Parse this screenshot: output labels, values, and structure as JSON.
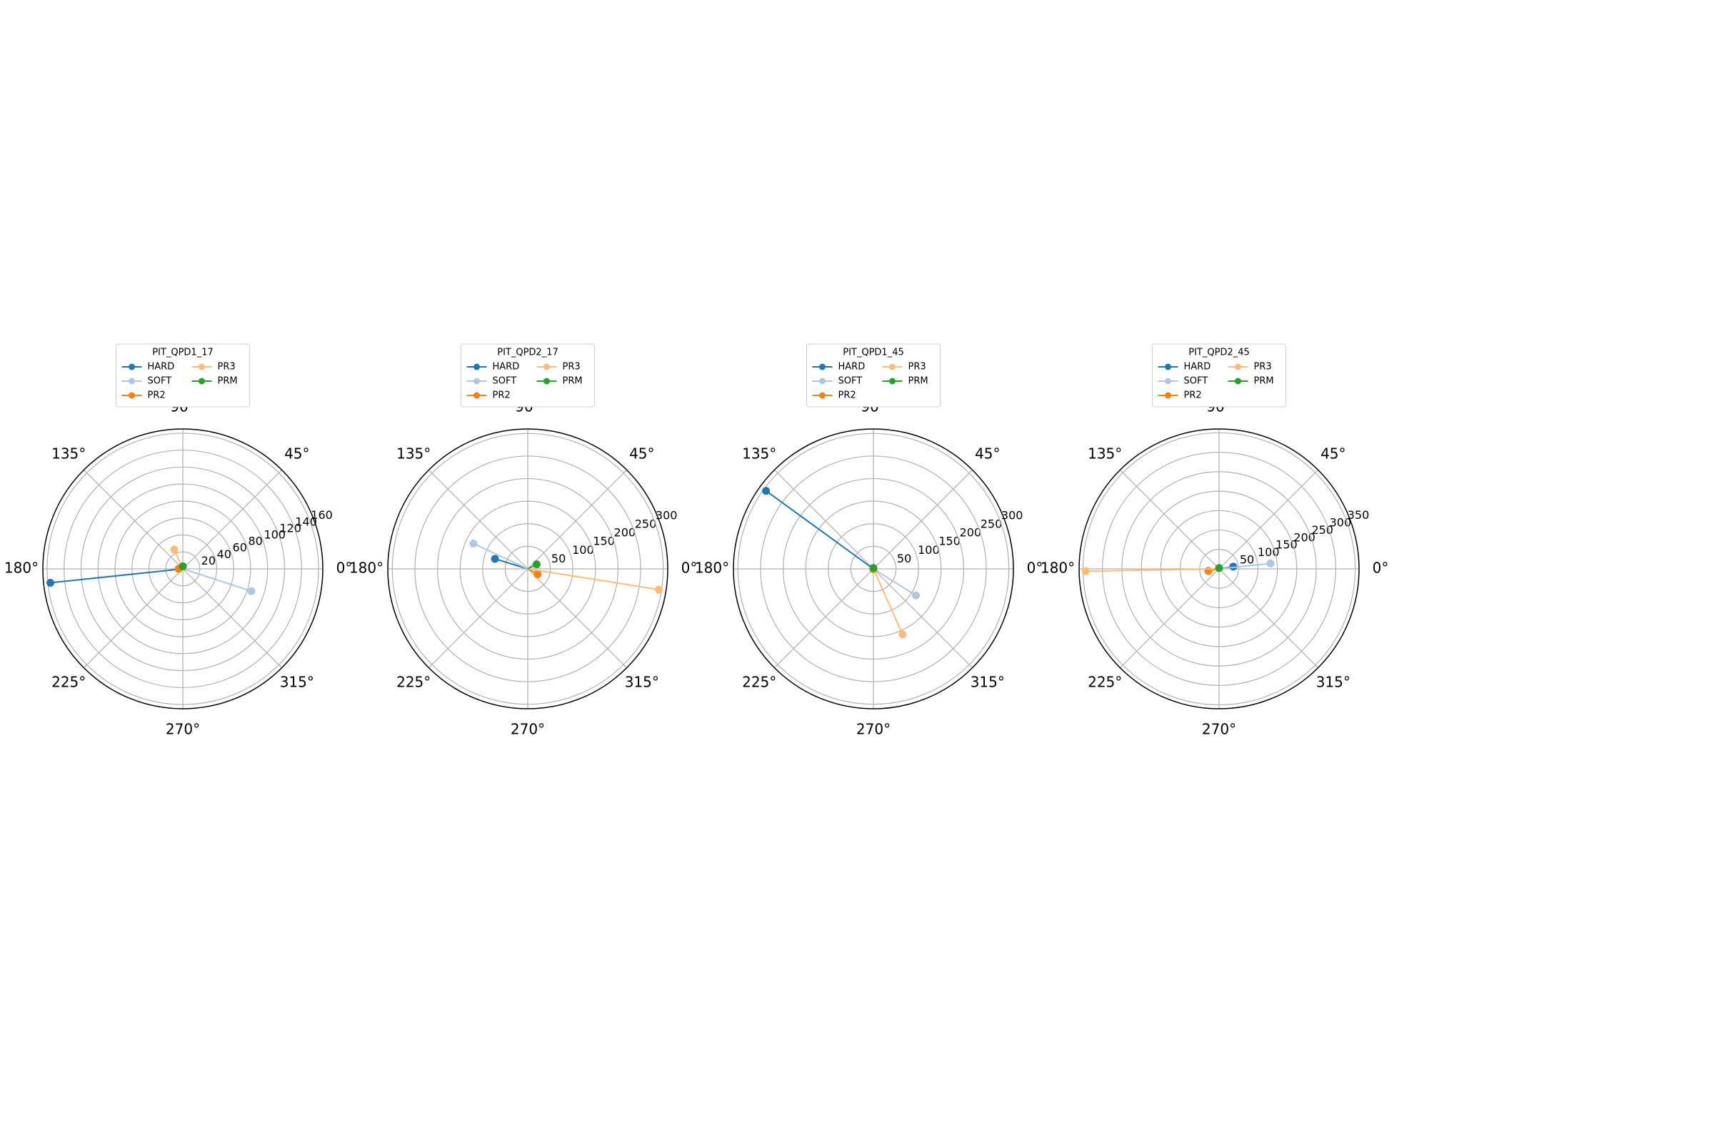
{
  "chart_data": [
    {
      "type": "polar",
      "legend_title": "PIT_QPD1_17",
      "thetaticks": [
        {
          "value": 0,
          "label": "0°"
        },
        {
          "value": 45,
          "label": "45°"
        },
        {
          "value": 90,
          "label": "90°"
        },
        {
          "value": 135,
          "label": "135°"
        },
        {
          "value": 180,
          "label": "180°"
        },
        {
          "value": 225,
          "label": "225°"
        },
        {
          "value": 270,
          "label": "270°"
        },
        {
          "value": 315,
          "label": "315°"
        }
      ],
      "rlim": [
        0,
        165
      ],
      "rticks": [
        20,
        40,
        60,
        80,
        100,
        120,
        140,
        160
      ],
      "series": [
        {
          "name": "HARD",
          "color": "#1f77b4",
          "theta": 186,
          "r": 157
        },
        {
          "name": "SOFT",
          "color": "#aec7e8",
          "theta": 342,
          "r": 85
        },
        {
          "name": "PR2",
          "color": "#ff7f0e",
          "theta": 180,
          "r": 5
        },
        {
          "name": "PR3",
          "color": "#ffbb78",
          "theta": 114,
          "r": 25
        },
        {
          "name": "PRM",
          "color": "#2ca02c",
          "theta": 90,
          "r": 3
        }
      ]
    },
    {
      "type": "polar",
      "legend_title": "PIT_QPD2_17",
      "thetaticks": [
        {
          "value": 0,
          "label": "0°"
        },
        {
          "value": 45,
          "label": "45°"
        },
        {
          "value": 90,
          "label": "90°"
        },
        {
          "value": 135,
          "label": "135°"
        },
        {
          "value": 180,
          "label": "180°"
        },
        {
          "value": 225,
          "label": "225°"
        },
        {
          "value": 270,
          "label": "270°"
        },
        {
          "value": 315,
          "label": "315°"
        }
      ],
      "rlim": [
        0,
        310
      ],
      "rticks": [
        50,
        100,
        150,
        200,
        250,
        300
      ],
      "series": [
        {
          "name": "HARD",
          "color": "#1f77b4",
          "theta": 163,
          "r": 76
        },
        {
          "name": "SOFT",
          "color": "#aec7e8",
          "theta": 155,
          "r": 133
        },
        {
          "name": "PR2",
          "color": "#ff7f0e",
          "theta": 331,
          "r": 25
        },
        {
          "name": "PR3",
          "color": "#ffbb78",
          "theta": 351,
          "r": 294
        },
        {
          "name": "PRM",
          "color": "#2ca02c",
          "theta": 27,
          "r": 22
        }
      ]
    },
    {
      "type": "polar",
      "legend_title": "PIT_QPD1_45",
      "thetaticks": [
        {
          "value": 0,
          "label": "0°"
        },
        {
          "value": 45,
          "label": "45°"
        },
        {
          "value": 90,
          "label": "90°"
        },
        {
          "value": 135,
          "label": "135°"
        },
        {
          "value": 180,
          "label": "180°"
        },
        {
          "value": 225,
          "label": "225°"
        },
        {
          "value": 270,
          "label": "270°"
        },
        {
          "value": 315,
          "label": "315°"
        }
      ],
      "rlim": [
        0,
        310
      ],
      "rticks": [
        50,
        100,
        150,
        200,
        250,
        300
      ],
      "series": [
        {
          "name": "HARD",
          "color": "#1f77b4",
          "theta": 144,
          "r": 294
        },
        {
          "name": "SOFT",
          "color": "#aec7e8",
          "theta": 328,
          "r": 111
        },
        {
          "name": "PR2",
          "color": "#ff7f0e",
          "theta": 270,
          "r": 1
        },
        {
          "name": "PR3",
          "color": "#ffbb78",
          "theta": 294,
          "r": 159
        },
        {
          "name": "PRM",
          "color": "#2ca02c",
          "theta": 90,
          "r": 2
        }
      ]
    },
    {
      "type": "polar",
      "legend_title": "PIT_QPD2_45",
      "thetaticks": [
        {
          "value": 0,
          "label": "0°"
        },
        {
          "value": 45,
          "label": "45°"
        },
        {
          "value": 90,
          "label": "90°"
        },
        {
          "value": 135,
          "label": "135°"
        },
        {
          "value": 180,
          "label": "180°"
        },
        {
          "value": 225,
          "label": "225°"
        },
        {
          "value": 270,
          "label": "270°"
        },
        {
          "value": 315,
          "label": "315°"
        }
      ],
      "rlim": [
        0,
        360
      ],
      "rticks": [
        50,
        100,
        150,
        200,
        250,
        300,
        350
      ],
      "series": [
        {
          "name": "HARD",
          "color": "#1f77b4",
          "theta": 9,
          "r": 37
        },
        {
          "name": "SOFT",
          "color": "#aec7e8",
          "theta": 6,
          "r": 133
        },
        {
          "name": "PR2",
          "color": "#ff7f0e",
          "theta": 191,
          "r": 28
        },
        {
          "name": "PR3",
          "color": "#ffbb78",
          "theta": 181,
          "r": 343
        },
        {
          "name": "PRM",
          "color": "#2ca02c",
          "theta": 90,
          "r": 2
        }
      ]
    }
  ]
}
